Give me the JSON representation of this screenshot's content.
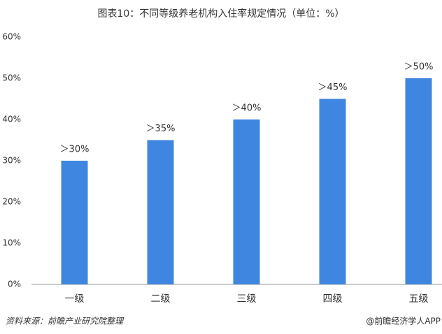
{
  "chart_data": {
    "type": "bar",
    "title": "图表10：不同等级养老机构入住率规定情况（单位：%）",
    "categories": [
      "一级",
      "二级",
      "三级",
      "四级",
      "五级"
    ],
    "values": [
      30,
      35,
      40,
      45,
      50
    ],
    "value_labels": [
      "＞30%",
      "＞35%",
      "＞40%",
      "＞45%",
      "＞50%"
    ],
    "color": "#3f86e0",
    "ylim": [
      0,
      60
    ],
    "yticks": [
      {
        "value": 0,
        "label": "0%"
      },
      {
        "value": 10,
        "label": "10%"
      },
      {
        "value": 20,
        "label": "20%"
      },
      {
        "value": 30,
        "label": "30%"
      },
      {
        "value": 40,
        "label": "40%"
      },
      {
        "value": 50,
        "label": "50%"
      },
      {
        "value": 60,
        "label": "60%"
      }
    ],
    "source": "资料来源：前瞻产业研究院整理",
    "credit": "@前瞻经济学人APP"
  }
}
